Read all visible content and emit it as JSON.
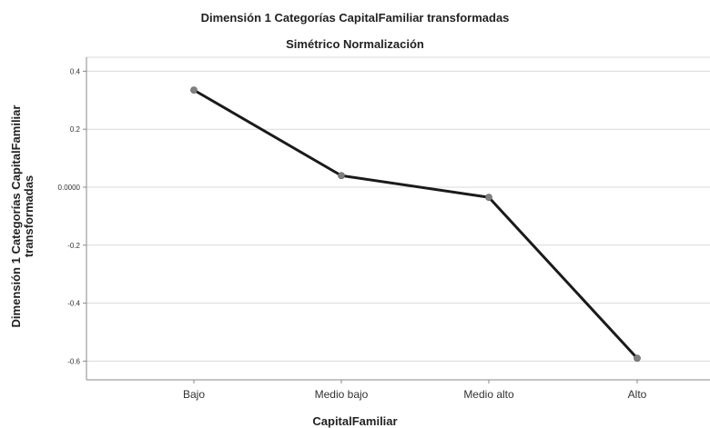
{
  "chart_data": {
    "type": "line",
    "title": "Dimensión 1 Categorías CapitalFamiliar transformadas",
    "subtitle": "Simétrico Normalización",
    "xlabel": "CapitalFamiliar",
    "ylabel_lines": [
      "Dimensión 1 Categorías CapitalFamiliar",
      "transformadas"
    ],
    "categories": [
      "Bajo",
      "Medio bajo",
      "Medio alto",
      "Alto"
    ],
    "values": [
      0.335,
      0.04,
      -0.035,
      -0.59
    ],
    "yticks": [
      0.4,
      0.2,
      0.0,
      -0.2,
      -0.4,
      -0.6
    ],
    "ytick_labels": [
      "0.4",
      "0.2",
      "0.0000",
      "-0.2",
      "-0.4",
      "-0.6"
    ],
    "ylim": [
      -0.65,
      0.43
    ],
    "grid": true,
    "colors": {
      "line": "#1a1a1a",
      "marker": "#808080",
      "grid": "#d9d9d9",
      "axis": "#888888"
    }
  }
}
